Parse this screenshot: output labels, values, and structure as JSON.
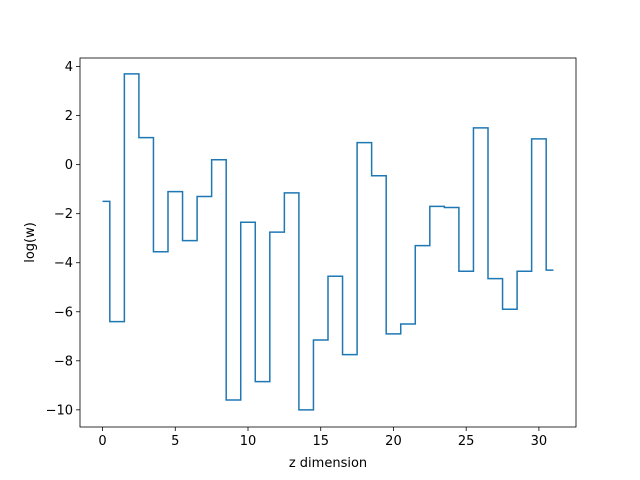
{
  "chart_data": {
    "type": "line",
    "drawstyle": "steps-mid",
    "title": "",
    "xlabel": "z dimension",
    "ylabel": "log(w)",
    "xlim": [
      -1.55,
      32.55
    ],
    "ylim": [
      -10.7,
      4.35
    ],
    "xticks": [
      0,
      5,
      10,
      15,
      20,
      25,
      30
    ],
    "yticks": [
      -10,
      -8,
      -6,
      -4,
      -2,
      0,
      2,
      4
    ],
    "xtick_labels": [
      "0",
      "5",
      "10",
      "15",
      "20",
      "25",
      "30"
    ],
    "ytick_labels": [
      "−10",
      "−8",
      "−6",
      "−4",
      "−2",
      "0",
      "2",
      "4"
    ],
    "grid": false,
    "legend": "none",
    "line_color": "#1f77b4",
    "x": [
      0,
      1,
      2,
      3,
      4,
      5,
      6,
      7,
      8,
      9,
      10,
      11,
      12,
      13,
      14,
      15,
      16,
      17,
      18,
      19,
      20,
      21,
      22,
      23,
      24,
      25,
      26,
      27,
      28,
      29,
      30,
      31
    ],
    "y": [
      -1.5,
      -6.4,
      3.7,
      1.1,
      -3.55,
      -1.1,
      -3.1,
      -1.3,
      0.2,
      -9.6,
      -2.35,
      -8.85,
      -2.75,
      -1.15,
      -10.0,
      -7.15,
      -4.55,
      -7.75,
      0.9,
      -0.45,
      -6.9,
      -6.5,
      -3.3,
      -1.7,
      -1.75,
      -4.35,
      1.5,
      -4.65,
      -5.9,
      -4.35,
      1.05,
      -4.3
    ]
  }
}
